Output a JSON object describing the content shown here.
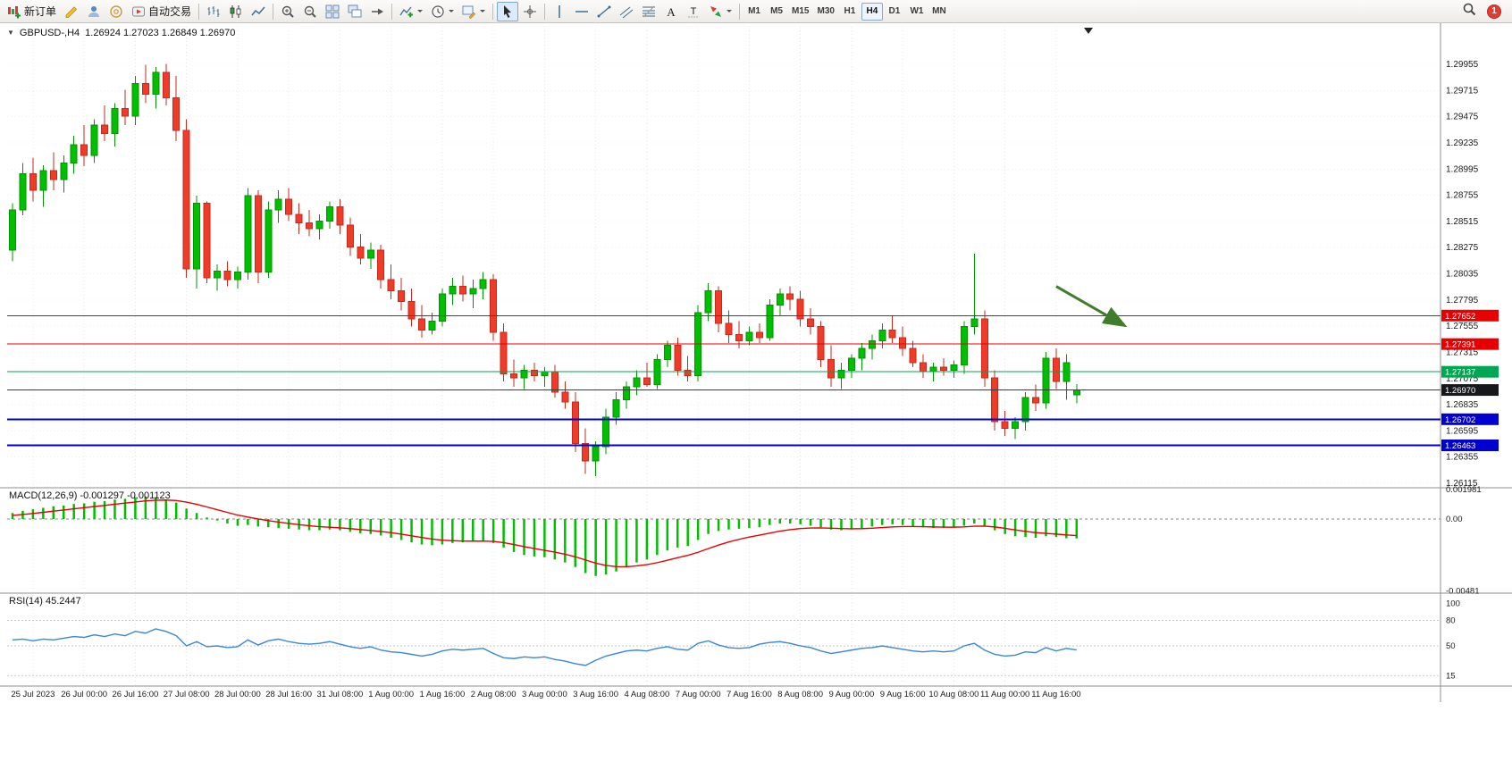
{
  "window": {
    "title_symbol": "GBPUSD-,H4",
    "title_ohlc": "1.26924 1.27023 1.26849 1.26970"
  },
  "toolbar": {
    "buttons": [
      {
        "name": "new-order-button",
        "icon": "new-order",
        "label": "新订单"
      },
      {
        "name": "metaeditor-button",
        "icon": "metaeditor"
      },
      {
        "name": "profile-button",
        "icon": "profile"
      },
      {
        "name": "community-button",
        "icon": "community"
      },
      {
        "name": "auto-trading-button",
        "icon": "auto-trading",
        "label": "自动交易"
      },
      {
        "type": "sep"
      },
      {
        "name": "bar-chart-button",
        "icon": "bar-chart"
      },
      {
        "name": "candlestick-chart-button",
        "icon": "candlestick"
      },
      {
        "name": "line-chart-button",
        "icon": "line-chart"
      },
      {
        "type": "sep"
      },
      {
        "name": "zoom-in-button",
        "icon": "zoom-in"
      },
      {
        "name": "zoom-out-button",
        "icon": "zoom-out"
      },
      {
        "name": "tile-windows-button",
        "icon": "tile-windows"
      },
      {
        "name": "arrange-windows-button",
        "icon": "arrange"
      },
      {
        "name": "chart-shift-button",
        "icon": "shift"
      },
      {
        "type": "sep"
      },
      {
        "name": "indicators-button",
        "icon": "add-indicator",
        "caret": true
      },
      {
        "name": "periods-button",
        "icon": "clock",
        "caret": true
      },
      {
        "name": "templates-button",
        "icon": "template",
        "caret": true
      },
      {
        "type": "sep"
      },
      {
        "name": "cursor-button",
        "icon": "cursor",
        "active": true
      },
      {
        "name": "crosshair-button",
        "icon": "crosshair"
      },
      {
        "type": "sep"
      },
      {
        "name": "vertical-line-button",
        "icon": "vline"
      },
      {
        "name": "horizontal-line-button",
        "icon": "hline"
      },
      {
        "name": "trendline-button",
        "icon": "trendline"
      },
      {
        "name": "channel-button",
        "icon": "channel"
      },
      {
        "name": "fibonacci-button",
        "icon": "fibonacci"
      },
      {
        "name": "text-button",
        "icon": "text"
      },
      {
        "name": "text-label-button",
        "icon": "label"
      },
      {
        "name": "arrow-objects-button",
        "icon": "arrows",
        "caret": true
      },
      {
        "type": "sep"
      }
    ],
    "timeframes": [
      "M1",
      "M5",
      "M15",
      "M30",
      "H1",
      "H4",
      "D1",
      "W1",
      "MN"
    ],
    "active_timeframe": "H4",
    "notification_count": "1"
  },
  "chart_data": {
    "type": "candlestick",
    "symbol": "GBPUSD-",
    "period": "H4",
    "ohlc_display": {
      "open": "1.26924",
      "high": "1.27023",
      "low": "1.26849",
      "close": "1.26970"
    },
    "price_axis_labels": [
      "1.29955",
      "1.29715",
      "1.29475",
      "1.29235",
      "1.28995",
      "1.28755",
      "1.28515",
      "1.28275",
      "1.28035",
      "1.27795",
      "1.27555",
      "1.27315",
      "1.27075",
      "1.26835",
      "1.26595",
      "1.26355",
      "1.26115"
    ],
    "time_labels": [
      "25 Jul 2023",
      "26 Jul 00:00",
      "26 Jul 16:00",
      "27 Jul 08:00",
      "28 Jul 00:00",
      "28 Jul 16:00",
      "31 Jul 08:00",
      "1 Aug 00:00",
      "1 Aug 16:00",
      "2 Aug 08:00",
      "3 Aug 00:00",
      "3 Aug 16:00",
      "4 Aug 08:00",
      "7 Aug 00:00",
      "7 Aug 16:00",
      "8 Aug 08:00",
      "9 Aug 00:00",
      "9 Aug 16:00",
      "10 Aug 08:00",
      "11 Aug 00:00",
      "11 Aug 16:00"
    ],
    "colors": {
      "up": "#00bf00",
      "up_stroke": "#009600",
      "down": "#f03b28",
      "down_stroke": "#c62a1d",
      "grid": "#e7e7e7",
      "axis_text": "#1a1a1a",
      "separator": "#8f8f8f"
    },
    "candles": [
      [
        1.2825,
        1.2868,
        1.2815,
        1.2862
      ],
      [
        1.2862,
        1.2905,
        1.2857,
        1.2895
      ],
      [
        1.2895,
        1.291,
        1.287,
        1.288
      ],
      [
        1.288,
        1.2903,
        1.2865,
        1.2898
      ],
      [
        1.2898,
        1.2915,
        1.288,
        1.289
      ],
      [
        1.289,
        1.2912,
        1.2878,
        1.2905
      ],
      [
        1.2905,
        1.293,
        1.2895,
        1.2922
      ],
      [
        1.2922,
        1.294,
        1.2902,
        1.2912
      ],
      [
        1.2912,
        1.2945,
        1.2905,
        1.294
      ],
      [
        1.294,
        1.2958,
        1.2925,
        1.2932
      ],
      [
        1.2932,
        1.296,
        1.292,
        1.2955
      ],
      [
        1.2955,
        1.2972,
        1.294,
        1.2948
      ],
      [
        1.2948,
        1.2985,
        1.294,
        1.2978
      ],
      [
        1.2978,
        1.2995,
        1.296,
        1.2968
      ],
      [
        1.2968,
        1.2993,
        1.2955,
        1.2988
      ],
      [
        1.2988,
        1.2996,
        1.2958,
        1.2965
      ],
      [
        1.2965,
        1.2985,
        1.2925,
        1.2935
      ],
      [
        1.2935,
        1.2945,
        1.28,
        1.2808
      ],
      [
        1.2808,
        1.2875,
        1.279,
        1.2868
      ],
      [
        1.2868,
        1.287,
        1.2795,
        1.28
      ],
      [
        1.28,
        1.2812,
        1.2788,
        1.2806
      ],
      [
        1.2806,
        1.2815,
        1.2792,
        1.2798
      ],
      [
        1.2798,
        1.281,
        1.279,
        1.2805
      ],
      [
        1.2805,
        1.2882,
        1.2798,
        1.2875
      ],
      [
        1.2875,
        1.288,
        1.2795,
        1.2805
      ],
      [
        1.2805,
        1.287,
        1.28,
        1.2862
      ],
      [
        1.2862,
        1.288,
        1.285,
        1.2872
      ],
      [
        1.2872,
        1.2882,
        1.2852,
        1.2858
      ],
      [
        1.2858,
        1.2868,
        1.284,
        1.285
      ],
      [
        1.285,
        1.2862,
        1.2838,
        1.2845
      ],
      [
        1.2845,
        1.2858,
        1.2835,
        1.2852
      ],
      [
        1.2852,
        1.287,
        1.2845,
        1.2865
      ],
      [
        1.2865,
        1.2872,
        1.284,
        1.2848
      ],
      [
        1.2848,
        1.2855,
        1.282,
        1.2828
      ],
      [
        1.2828,
        1.284,
        1.2812,
        1.2818
      ],
      [
        1.2818,
        1.2832,
        1.2808,
        1.2825
      ],
      [
        1.2825,
        1.283,
        1.279,
        1.2798
      ],
      [
        1.2798,
        1.2812,
        1.278,
        1.2788
      ],
      [
        1.2788,
        1.28,
        1.277,
        1.2778
      ],
      [
        1.2778,
        1.279,
        1.2755,
        1.2762
      ],
      [
        1.2762,
        1.2775,
        1.2745,
        1.2752
      ],
      [
        1.2752,
        1.2768,
        1.2748,
        1.276
      ],
      [
        1.276,
        1.279,
        1.2755,
        1.2785
      ],
      [
        1.2785,
        1.28,
        1.2775,
        1.2792
      ],
      [
        1.2792,
        1.2802,
        1.2778,
        1.2785
      ],
      [
        1.2785,
        1.2798,
        1.2772,
        1.279
      ],
      [
        1.279,
        1.2805,
        1.278,
        1.2798
      ],
      [
        1.2798,
        1.2803,
        1.2742,
        1.275
      ],
      [
        1.275,
        1.2758,
        1.2705,
        1.2712
      ],
      [
        1.2712,
        1.2725,
        1.27,
        1.2708
      ],
      [
        1.2708,
        1.272,
        1.2698,
        1.2715
      ],
      [
        1.2715,
        1.2722,
        1.2705,
        1.271
      ],
      [
        1.271,
        1.2718,
        1.27,
        1.2714
      ],
      [
        1.2714,
        1.272,
        1.269,
        1.2695
      ],
      [
        1.2695,
        1.2705,
        1.268,
        1.2686
      ],
      [
        1.2686,
        1.2695,
        1.264,
        1.2648
      ],
      [
        1.2648,
        1.2662,
        1.262,
        1.2632
      ],
      [
        1.2632,
        1.265,
        1.2618,
        1.2645
      ],
      [
        1.2645,
        1.268,
        1.2638,
        1.2672
      ],
      [
        1.2672,
        1.2695,
        1.2665,
        1.2688
      ],
      [
        1.2688,
        1.2705,
        1.268,
        1.27
      ],
      [
        1.27,
        1.2715,
        1.2692,
        1.2708
      ],
      [
        1.2708,
        1.2722,
        1.27,
        1.2702
      ],
      [
        1.2702,
        1.273,
        1.2698,
        1.2725
      ],
      [
        1.2725,
        1.2742,
        1.2718,
        1.2738
      ],
      [
        1.2738,
        1.2745,
        1.271,
        1.2715
      ],
      [
        1.2715,
        1.2728,
        1.2705,
        1.271
      ],
      [
        1.271,
        1.2775,
        1.2705,
        1.2768
      ],
      [
        1.2768,
        1.2795,
        1.276,
        1.2788
      ],
      [
        1.2788,
        1.2792,
        1.275,
        1.2758
      ],
      [
        1.2758,
        1.277,
        1.274,
        1.2748
      ],
      [
        1.2748,
        1.276,
        1.2735,
        1.2742
      ],
      [
        1.2742,
        1.2755,
        1.2738,
        1.275
      ],
      [
        1.275,
        1.2758,
        1.274,
        1.2745
      ],
      [
        1.2745,
        1.278,
        1.2742,
        1.2775
      ],
      [
        1.2775,
        1.279,
        1.2765,
        1.2785
      ],
      [
        1.2785,
        1.2792,
        1.277,
        1.278
      ],
      [
        1.278,
        1.2788,
        1.2755,
        1.2762
      ],
      [
        1.2762,
        1.2772,
        1.2748,
        1.2755
      ],
      [
        1.2755,
        1.276,
        1.2718,
        1.2725
      ],
      [
        1.2725,
        1.2738,
        1.27,
        1.2708
      ],
      [
        1.2708,
        1.2722,
        1.2698,
        1.2715
      ],
      [
        1.2715,
        1.273,
        1.2708,
        1.2726
      ],
      [
        1.2726,
        1.274,
        1.2715,
        1.2735
      ],
      [
        1.2735,
        1.2748,
        1.2725,
        1.2742
      ],
      [
        1.2742,
        1.2758,
        1.2735,
        1.2752
      ],
      [
        1.2752,
        1.2765,
        1.274,
        1.2745
      ],
      [
        1.2745,
        1.2755,
        1.2728,
        1.2735
      ],
      [
        1.2735,
        1.2742,
        1.2718,
        1.2722
      ],
      [
        1.2722,
        1.273,
        1.2708,
        1.2714
      ],
      [
        1.2714,
        1.2722,
        1.2705,
        1.2718
      ],
      [
        1.2718,
        1.2726,
        1.271,
        1.2715
      ],
      [
        1.2715,
        1.2724,
        1.2708,
        1.272
      ],
      [
        1.272,
        1.276,
        1.2712,
        1.2755
      ],
      [
        1.2755,
        1.2822,
        1.2748,
        1.2762
      ],
      [
        1.2762,
        1.277,
        1.27,
        1.2708
      ],
      [
        1.2708,
        1.2715,
        1.266,
        1.2668
      ],
      [
        1.2668,
        1.2678,
        1.2655,
        1.2662
      ],
      [
        1.2662,
        1.2672,
        1.2652,
        1.2668
      ],
      [
        1.2668,
        1.2695,
        1.266,
        1.269
      ],
      [
        1.269,
        1.2702,
        1.2678,
        1.2685
      ],
      [
        1.2685,
        1.2732,
        1.268,
        1.2726
      ],
      [
        1.2726,
        1.2735,
        1.2698,
        1.2705
      ],
      [
        1.2705,
        1.273,
        1.2688,
        1.2722
      ],
      [
        1.26924,
        1.27023,
        1.26849,
        1.2697
      ]
    ],
    "hlines": [
      {
        "price": 1.27652,
        "label": "1.27652",
        "color": "#e60000",
        "width": 1
      },
      {
        "price": 1.27391,
        "label": "1.27391",
        "color": "#e60000",
        "width": 1
      },
      {
        "price": 1.27137,
        "label": "1.27137",
        "color": "#00a651",
        "width": 1
      },
      {
        "price": 1.26702,
        "label": "1.26702",
        "color": "#0000d0",
        "width": 2
      },
      {
        "price": 1.26463,
        "label": "1.26463",
        "color": "#0000d0",
        "width": 2
      }
    ],
    "current_price": {
      "price": 1.2697,
      "label": "1.26970",
      "tag_color": "#17181c",
      "line_color": "#3c3c3c"
    },
    "annotations": [
      {
        "type": "arrow",
        "from_bar": 102,
        "from_price": 1.2792,
        "to_bar": 108.5,
        "to_price": 1.2757,
        "color": "#3f7d2c"
      }
    ],
    "indicators": {
      "macd": {
        "label": "MACD(12,26,9) -0.001297 -0.001123",
        "axis_labels": [
          "0.001981",
          "0.00",
          "-0.00481"
        ],
        "axis_values": [
          0.001981,
          0,
          -0.00481
        ],
        "histogram_color": "#00bf00",
        "signal_color": "#e60000",
        "histogram_milli": [
          0.4,
          0.55,
          0.65,
          0.75,
          0.85,
          0.9,
          1.0,
          1.05,
          1.15,
          1.2,
          1.3,
          1.35,
          1.45,
          1.5,
          1.45,
          1.3,
          1.1,
          0.7,
          0.4,
          0.1,
          -0.1,
          -0.3,
          -0.45,
          -0.4,
          -0.5,
          -0.55,
          -0.6,
          -0.65,
          -0.7,
          -0.75,
          -0.75,
          -0.7,
          -0.75,
          -0.85,
          -0.95,
          -1.0,
          -1.1,
          -1.25,
          -1.4,
          -1.55,
          -1.7,
          -1.75,
          -1.7,
          -1.6,
          -1.55,
          -1.5,
          -1.45,
          -1.6,
          -1.9,
          -2.2,
          -2.4,
          -2.5,
          -2.55,
          -2.7,
          -2.9,
          -3.2,
          -3.6,
          -3.8,
          -3.7,
          -3.5,
          -3.2,
          -2.9,
          -2.7,
          -2.4,
          -2.1,
          -1.9,
          -1.8,
          -1.4,
          -1.0,
          -0.8,
          -0.7,
          -0.65,
          -0.6,
          -0.55,
          -0.4,
          -0.3,
          -0.3,
          -0.35,
          -0.45,
          -0.55,
          -0.7,
          -0.75,
          -0.7,
          -0.6,
          -0.5,
          -0.4,
          -0.35,
          -0.4,
          -0.5,
          -0.55,
          -0.6,
          -0.6,
          -0.55,
          -0.45,
          -0.3,
          -0.45,
          -0.75,
          -1.0,
          -1.15,
          -1.2,
          -1.25,
          -1.15,
          -1.2,
          -1.28,
          -1.297
        ]
      },
      "rsi": {
        "label": "RSI(14) 45.2447",
        "value": 45.2447,
        "axis_labels": [
          "100",
          "80",
          "50",
          "15"
        ],
        "axis_values": [
          100,
          80,
          50,
          15
        ],
        "levels": [
          80,
          50,
          15
        ],
        "line_color": "#3a87d8",
        "values": [
          57,
          58,
          56,
          58,
          57,
          59,
          61,
          60,
          63,
          61,
          64,
          62,
          67,
          65,
          70,
          67,
          62,
          50,
          55,
          49,
          50,
          48,
          49,
          57,
          51,
          56,
          58,
          55,
          53,
          52,
          53,
          55,
          52,
          49,
          47,
          49,
          45,
          43,
          42,
          40,
          38,
          40,
          44,
          46,
          45,
          46,
          47,
          41,
          36,
          35,
          37,
          36,
          37,
          34,
          32,
          29,
          27,
          33,
          38,
          41,
          44,
          45,
          44,
          47,
          49,
          46,
          45,
          53,
          56,
          51,
          48,
          47,
          48,
          52,
          54,
          55,
          53,
          50,
          48,
          44,
          41,
          43,
          45,
          47,
          48,
          50,
          48,
          46,
          44,
          43,
          44,
          43,
          44,
          50,
          53,
          45,
          40,
          38,
          39,
          43,
          42,
          48,
          44,
          47,
          45.24
        ]
      }
    }
  }
}
